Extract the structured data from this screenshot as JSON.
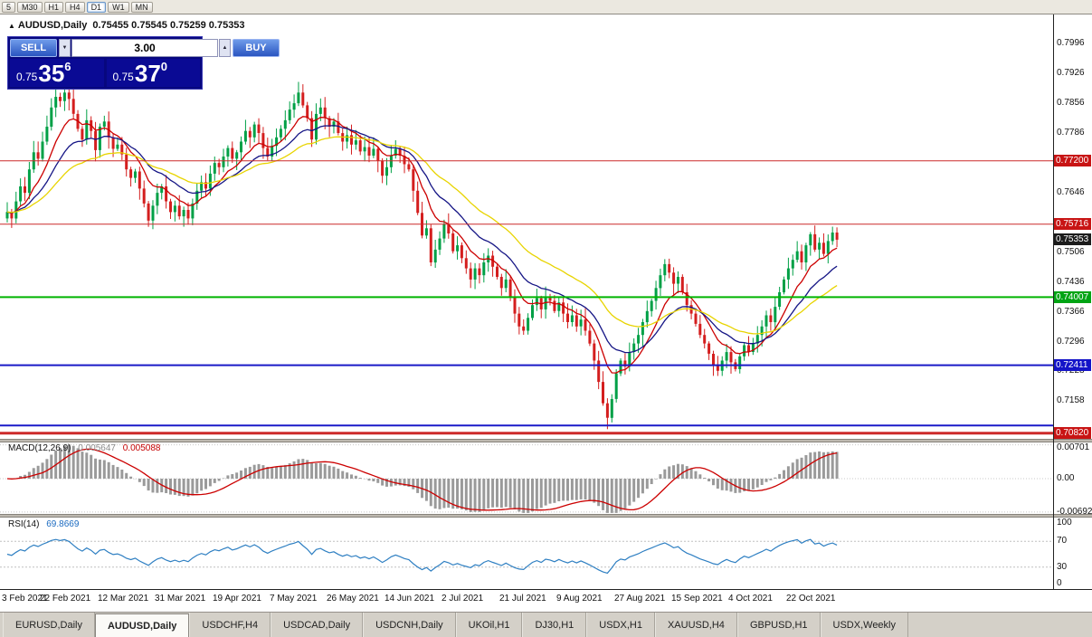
{
  "toolbar": {
    "timeframes": [
      "5",
      "M30",
      "H1",
      "H4",
      "D1",
      "W1",
      "MN"
    ],
    "active": "D1"
  },
  "chart_header": {
    "marker": "▲",
    "title": "AUDUSD,Daily",
    "ohlc": "0.75455 0.75545 0.75259 0.75353"
  },
  "trade_panel": {
    "sell_label": "SELL",
    "buy_label": "BUY",
    "volume": "3.00",
    "spin_down": "▼",
    "spin_up": "▲",
    "sell_price": {
      "small": "0.75",
      "big": "35",
      "sup": "6"
    },
    "buy_price": {
      "small": "0.75",
      "big": "37",
      "sup": "0"
    }
  },
  "price_axis": {
    "ticks": [
      {
        "label": "0.7996",
        "value": 0.7996
      },
      {
        "label": "0.7926",
        "value": 0.7926
      },
      {
        "label": "0.7856",
        "value": 0.7856
      },
      {
        "label": "0.7786",
        "value": 0.7786
      },
      {
        "label": "0.7646",
        "value": 0.7646
      },
      {
        "label": "0.7506",
        "value": 0.7506
      },
      {
        "label": "0.7436",
        "value": 0.7436
      },
      {
        "label": "0.7366",
        "value": 0.7366
      },
      {
        "label": "0.7296",
        "value": 0.7296
      },
      {
        "label": "0.7228",
        "value": 0.7228
      },
      {
        "label": "0.7158",
        "value": 0.7158
      }
    ],
    "tags": [
      {
        "label": "0.77200",
        "value": 0.772,
        "color": "#c81414"
      },
      {
        "label": "0.75716",
        "value": 0.75716,
        "color": "#c81414"
      },
      {
        "label": "0.75353",
        "value": 0.75353,
        "color": "#1c1c1c"
      },
      {
        "label": "0.74007",
        "value": 0.74007,
        "color": "#00a414"
      },
      {
        "label": "0.72411",
        "value": 0.72411,
        "color": "#1414c8"
      },
      {
        "label": "0.70820",
        "value": 0.7082,
        "color": "#c81414"
      }
    ]
  },
  "macd": {
    "label": "MACD(12,26,9)",
    "value_main": "0.005647",
    "value_signal": "0.005088",
    "ticks": [
      {
        "label": "0.00701",
        "value": 0.00701
      },
      {
        "label": "0.00",
        "value": 0
      },
      {
        "label": "-0.00692",
        "value": -0.00692
      }
    ]
  },
  "rsi": {
    "label": "RSI(14)",
    "value": "69.8669",
    "ticks": [
      {
        "label": "100",
        "value": 100
      },
      {
        "label": "70",
        "value": 70
      },
      {
        "label": "30",
        "value": 30
      },
      {
        "label": "0",
        "value": 0
      }
    ],
    "levels": [
      70,
      30
    ]
  },
  "tabs": {
    "items": [
      "EURUSD,Daily",
      "AUDUSD,Daily",
      "USDCHF,H4",
      "USDCAD,Daily",
      "USDCNH,Daily",
      "UKOil,H1",
      "DJ30,H1",
      "USDX,H1",
      "XAUUSD,H4",
      "GBPUSD,H1",
      "USDX,Weekly"
    ],
    "active_index": 1
  },
  "chart_data": {
    "type": "candlestick",
    "symbol": "AUDUSD",
    "timeframe": "Daily",
    "ohlc_current": {
      "open": 0.75455,
      "high": 0.75545,
      "low": 0.75259,
      "close": 0.75353
    },
    "price_range": {
      "top": 0.8065,
      "bottom": 0.70665
    },
    "up_color": "#00A046",
    "down_color": "#D41E1E",
    "label_step": 13,
    "x_labels": [
      "3 Feb 2021",
      "22 Feb 2021",
      "12 Mar 2021",
      "31 Mar 2021",
      "19 Apr 2021",
      "7 May 2021",
      "26 May 2021",
      "14 Jun 2021",
      "2 Jul 2021",
      "21 Jul 2021",
      "9 Aug 2021",
      "27 Aug 2021",
      "15 Sep 2021",
      "4 Oct 2021",
      "22 Oct 2021"
    ],
    "closes": [
      0.76,
      0.7585,
      0.7625,
      0.766,
      0.7645,
      0.77,
      0.774,
      0.7725,
      0.7765,
      0.78,
      0.7845,
      0.787,
      0.786,
      0.788,
      0.7865,
      0.783,
      0.7795,
      0.777,
      0.7815,
      0.779,
      0.7745,
      0.78,
      0.7812,
      0.7775,
      0.7748,
      0.7758,
      0.7735,
      0.77,
      0.768,
      0.7695,
      0.7655,
      0.762,
      0.758,
      0.7615,
      0.7645,
      0.766,
      0.7625,
      0.76,
      0.7615,
      0.759,
      0.7605,
      0.7585,
      0.762,
      0.765,
      0.767,
      0.7655,
      0.769,
      0.7715,
      0.7705,
      0.773,
      0.775,
      0.7725,
      0.774,
      0.7765,
      0.779,
      0.7775,
      0.7805,
      0.7785,
      0.775,
      0.773,
      0.7755,
      0.7775,
      0.7795,
      0.7815,
      0.784,
      0.7855,
      0.788,
      0.785,
      0.782,
      0.777,
      0.783,
      0.7845,
      0.782,
      0.78,
      0.7812,
      0.7785,
      0.7765,
      0.778,
      0.7758,
      0.7768,
      0.7742,
      0.7752,
      0.7732,
      0.7748,
      0.772,
      0.7685,
      0.7705,
      0.7732,
      0.7748,
      0.7732,
      0.7712,
      0.77,
      0.765,
      0.7598,
      0.7545,
      0.7562,
      0.7482,
      0.7512,
      0.7538,
      0.7572,
      0.755,
      0.7508,
      0.7522,
      0.7492,
      0.7468,
      0.7442,
      0.7468,
      0.7452,
      0.7482,
      0.7498,
      0.7472,
      0.7448,
      0.7422,
      0.7442,
      0.7402,
      0.7362,
      0.7332,
      0.7322,
      0.7352,
      0.7382,
      0.7398,
      0.7372,
      0.7402,
      0.7392,
      0.7368,
      0.7388,
      0.7362,
      0.7342,
      0.7358,
      0.7332,
      0.7348,
      0.7322,
      0.7292,
      0.7252,
      0.7202,
      0.7152,
      0.7118,
      0.7162,
      0.7222,
      0.7252,
      0.7238,
      0.7272,
      0.7292,
      0.7312,
      0.7342,
      0.7368,
      0.7392,
      0.7422,
      0.7452,
      0.7478,
      0.7458,
      0.7432,
      0.7448,
      0.7412,
      0.7382,
      0.7362,
      0.7338,
      0.7312,
      0.7292,
      0.7268,
      0.7242,
      0.7228,
      0.7252,
      0.7272,
      0.7248,
      0.7232,
      0.7262,
      0.7288,
      0.7272,
      0.7292,
      0.7312,
      0.7332,
      0.7358,
      0.7342,
      0.7378,
      0.7412,
      0.7442,
      0.7468,
      0.7488,
      0.7508,
      0.7482,
      0.7522,
      0.7548,
      0.7512,
      0.7528,
      0.7502,
      0.7532,
      0.7552,
      0.75353
    ],
    "ma_lines": [
      {
        "period": 9,
        "color": "#CC0000"
      },
      {
        "period": 18,
        "color": "#151585"
      },
      {
        "period": 34,
        "color": "#E8D400"
      }
    ],
    "levels": [
      {
        "price": 0.772,
        "color": "#CC2A2A",
        "width": 1
      },
      {
        "price": 0.75716,
        "color": "#CC2A2A",
        "width": 1
      },
      {
        "price": 0.74007,
        "color": "#00B400",
        "width": 2
      },
      {
        "price": 0.72411,
        "color": "#1A1AC8",
        "width": 2
      },
      {
        "price": 0.71,
        "color": "#1A1AC8",
        "width": 2
      },
      {
        "price": 0.7082,
        "color": "#CC2A2A",
        "width": 3
      }
    ],
    "macd": {
      "fast": 12,
      "slow": 26,
      "signal": 9,
      "range": 0.0075,
      "histogram_color": "#9a9a9a",
      "signal_color": "#cc0000"
    },
    "rsi": {
      "period": 14,
      "color": "#2e7fc2"
    }
  }
}
